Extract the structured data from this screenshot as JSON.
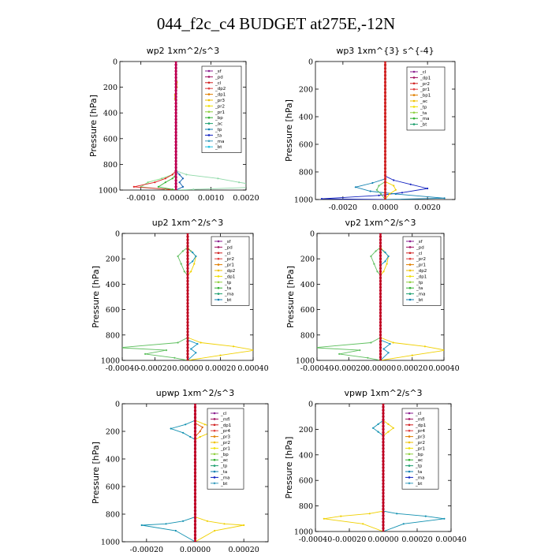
{
  "figure_title": "044_f2c_c4  BUDGET at275E,-12N",
  "chart_data": [
    {
      "type": "line",
      "title": "wp2  1xm^2/s^3",
      "ylabel": "Pressure [hPa]",
      "xlim": [
        -0.0016,
        0.002
      ],
      "ylim": [
        1000,
        0
      ],
      "xticks": [
        "-0.0010",
        "0.0000",
        "0.0010",
        "0.0020"
      ],
      "xtick_values": [
        -0.001,
        0,
        0.001,
        0.002
      ],
      "yticks": [
        "0",
        "200",
        "400",
        "600",
        "800",
        "1000"
      ],
      "ytick_values": [
        0,
        200,
        400,
        600,
        800,
        1000
      ],
      "legend": [
        "_sf",
        "_pd",
        "_cl",
        "_dp2",
        "_dp1",
        "_pr3",
        "_pr2",
        "_pr1",
        "_bp",
        "_ac",
        "_tp",
        "_ta",
        "_ma",
        "_bt"
      ],
      "series": [
        {
          "name": "_pr1",
          "color": "#7fe080",
          "x": [
            0,
            -0.0001,
            -0.0004,
            -0.0008,
            -0.001,
            -0.0003,
            0
          ],
          "y": [
            850,
            880,
            910,
            940,
            975,
            995,
            1000
          ]
        },
        {
          "name": "_ac",
          "color": "#8fd9a8",
          "x": [
            0,
            0.0003,
            0.0012,
            0.0018,
            0.0026,
            0.0005,
            0
          ],
          "y": [
            850,
            880,
            910,
            940,
            975,
            995,
            1000
          ]
        },
        {
          "name": "_dp1",
          "color": "#e02020",
          "x": [
            0,
            -0.0001,
            -0.0003,
            -0.0006,
            -0.0012,
            -0.0002,
            0
          ],
          "y": [
            850,
            880,
            910,
            940,
            975,
            995,
            1000
          ]
        },
        {
          "name": "_bp",
          "color": "#30b030",
          "x": [
            0,
            0,
            -0.0001,
            -0.0003,
            -0.0005,
            -0.0001,
            0
          ],
          "y": [
            850,
            880,
            910,
            940,
            975,
            995,
            1000
          ]
        },
        {
          "name": "_tp",
          "color": "#1060b0",
          "x": [
            0,
            0.0001,
            0.0002,
            0.0001,
            0.0002,
            0
          ],
          "y": [
            850,
            880,
            910,
            940,
            975,
            1000
          ]
        },
        {
          "name": "_pr3",
          "color": "#e0b000",
          "x": [
            0,
            3e-05,
            3e-05,
            0,
            -3e-05,
            -3e-05,
            0,
            0
          ],
          "y": [
            140,
            160,
            200,
            230,
            260,
            290,
            300,
            1000
          ]
        },
        {
          "name": "_pd",
          "color": "#8b2090",
          "x": [
            0,
            0
          ],
          "y": [
            0,
            1000
          ]
        },
        {
          "name": "_cl",
          "color": "#c00050",
          "x": [
            0,
            0
          ],
          "y": [
            0,
            1000
          ]
        }
      ]
    },
    {
      "type": "line",
      "title": "wp3  1xm^{3} s^{-4}",
      "ylabel": "Pressure [hPa]",
      "xlim": [
        -0.0033,
        0.0033
      ],
      "ylim": [
        1000,
        0
      ],
      "xticks": [
        "-0.0020",
        "0.0000",
        "0.0020"
      ],
      "xtick_values": [
        -0.002,
        0,
        0.002
      ],
      "yticks": [
        "0",
        "200",
        "400",
        "600",
        "800",
        "1000"
      ],
      "ytick_values": [
        0,
        200,
        400,
        600,
        800,
        1000
      ],
      "legend": [
        "_cl",
        "_dp1",
        "_pr2",
        "_pr1",
        "_bp1",
        "_ac",
        "_tp",
        "_ta",
        "_ma",
        "_bt"
      ],
      "series": [
        {
          "name": "_ta",
          "color": "#1020c0",
          "x": [
            0,
            0.0004,
            0.0012,
            0.002,
            0.0008,
            -0.0003,
            -0.003,
            0
          ],
          "y": [
            830,
            860,
            890,
            920,
            950,
            970,
            995,
            1000
          ]
        },
        {
          "name": "_tp",
          "color": "#1080b0",
          "x": [
            0,
            -0.0006,
            -0.0014,
            -0.0007,
            0.0005,
            0.0028,
            0
          ],
          "y": [
            850,
            880,
            910,
            940,
            960,
            990,
            1000
          ]
        },
        {
          "name": "_pr1",
          "color": "#f0d000",
          "x": [
            0,
            0.0004,
            0.0005,
            0.0002,
            0
          ],
          "y": [
            870,
            900,
            930,
            960,
            1000
          ]
        },
        {
          "name": "_ac",
          "color": "#60c060",
          "x": [
            0,
            -0.0003,
            -0.0004,
            -0.0002,
            0
          ],
          "y": [
            870,
            900,
            930,
            960,
            1000
          ]
        },
        {
          "name": "_dp1",
          "color": "#d02020",
          "x": [
            0,
            0
          ],
          "y": [
            0,
            1000
          ]
        }
      ]
    },
    {
      "type": "line",
      "title": "up2  1xm^2/s^3",
      "ylabel": "Pressure [hPa]",
      "xlim": [
        -0.0004,
        0.0004
      ],
      "ylim": [
        1000,
        0
      ],
      "xticks": [
        "-0.00040",
        "-0.00020",
        "0.00000",
        "0.00020",
        "0.00040"
      ],
      "xtick_values": [
        -0.0004,
        -0.0002,
        0,
        0.0002,
        0.0004
      ],
      "yticks": [
        "0",
        "200",
        "400",
        "600",
        "800",
        "1000"
      ],
      "ytick_values": [
        0,
        200,
        400,
        600,
        800,
        1000
      ],
      "legend": [
        "_sf",
        "_pd",
        "_cl",
        "_pr2",
        "_pr1",
        "_dp2",
        "_dp1",
        "_tp",
        "_ta",
        "_ma",
        "_bt"
      ],
      "series": [
        {
          "name": "_pr1",
          "color": "#f0d000",
          "x": [
            0,
            2e-05,
            5e-05,
            4e-05,
            2e-05,
            0,
            0,
            8e-05,
            0.00028,
            0.00041,
            0.0002,
            0
          ],
          "y": [
            110,
            140,
            180,
            240,
            300,
            330,
            820,
            860,
            890,
            920,
            960,
            1000
          ]
        },
        {
          "name": "_pr2",
          "color": "#60c060",
          "x": [
            0,
            -3e-05,
            -6e-05,
            -4e-05,
            -2e-05,
            0,
            0,
            -6e-05,
            -0.00042,
            -0.00013,
            -0.00026,
            -8e-05,
            0
          ],
          "y": [
            110,
            140,
            180,
            240,
            300,
            330,
            820,
            860,
            900,
            920,
            950,
            980,
            1000
          ]
        },
        {
          "name": "_tp",
          "color": "#1090c0",
          "x": [
            0,
            3e-05,
            5e-05,
            3e-05,
            0,
            0,
            6e-05,
            2e-05,
            5e-05,
            0
          ],
          "y": [
            120,
            150,
            180,
            220,
            250,
            840,
            870,
            910,
            940,
            1000
          ]
        },
        {
          "name": "_pd",
          "color": "#c00020",
          "x": [
            0,
            0
          ],
          "y": [
            0,
            1000
          ]
        }
      ]
    },
    {
      "type": "line",
      "title": "vp2  1xm^2/s^3",
      "ylabel": "Pressure [hPa]",
      "xlim": [
        -0.0004,
        0.0004
      ],
      "ylim": [
        1000,
        0
      ],
      "xticks": [
        "-0.00040",
        "-0.00020",
        "0.00000",
        "0.00020",
        "0.00040"
      ],
      "xtick_values": [
        -0.0004,
        -0.0002,
        0,
        0.0002,
        0.0004
      ],
      "yticks": [
        "0",
        "200",
        "400",
        "600",
        "800",
        "1000"
      ],
      "ytick_values": [
        0,
        200,
        400,
        600,
        800,
        1000
      ],
      "legend": [
        "_sf",
        "_pd",
        "_cl",
        "_pr2",
        "_pr1",
        "_dp2",
        "_dp1",
        "_tp",
        "_ta",
        "_ma",
        "_bt"
      ],
      "series": [
        {
          "name": "_pr1",
          "color": "#f0d000",
          "x": [
            0,
            2e-05,
            5e-05,
            4e-05,
            2e-05,
            0,
            0,
            8e-05,
            0.00028,
            0.00041,
            0.0002,
            0
          ],
          "y": [
            110,
            140,
            180,
            240,
            300,
            330,
            820,
            860,
            890,
            920,
            960,
            1000
          ]
        },
        {
          "name": "_pr2",
          "color": "#60c060",
          "x": [
            0,
            -3e-05,
            -6e-05,
            -4e-05,
            -2e-05,
            0,
            0,
            -6e-05,
            -0.00042,
            -0.00013,
            -0.00026,
            -8e-05,
            0
          ],
          "y": [
            110,
            140,
            180,
            240,
            300,
            330,
            820,
            860,
            900,
            920,
            950,
            980,
            1000
          ]
        },
        {
          "name": "_tp",
          "color": "#1090c0",
          "x": [
            0,
            3e-05,
            5e-05,
            3e-05,
            0,
            0,
            6e-05,
            2e-05,
            5e-05,
            0
          ],
          "y": [
            120,
            150,
            180,
            220,
            250,
            840,
            870,
            910,
            940,
            1000
          ]
        },
        {
          "name": "_pd",
          "color": "#c00020",
          "x": [
            0,
            0
          ],
          "y": [
            0,
            1000
          ]
        }
      ]
    },
    {
      "type": "line",
      "title": "upwp  1xm^2/s^3",
      "ylabel": "Pressure [hPa]",
      "xlim": [
        -0.0003,
        0.0003
      ],
      "ylim": [
        1000,
        0
      ],
      "xticks": [
        "-0.00020",
        "0.00000",
        "0.00020"
      ],
      "xtick_values": [
        -0.0002,
        0,
        0.0002
      ],
      "yticks": [
        "0",
        "200",
        "400",
        "600",
        "800",
        "1000"
      ],
      "ytick_values": [
        0,
        200,
        400,
        600,
        800,
        1000
      ],
      "legend": [
        "_cl",
        "_mfl",
        "_dp1",
        "_pr4",
        "_pr3",
        "_pr2",
        "_pr1",
        "_bp",
        "_ac",
        "_tp",
        "_ta",
        "_ma",
        "_bt"
      ],
      "series": [
        {
          "name": "_tp",
          "color": "#1090b0",
          "x": [
            0,
            -4e-05,
            -0.0001,
            -5e-05,
            -2e-05,
            0,
            0,
            -5e-05,
            -0.00012,
            -0.00022,
            -8e-05,
            0
          ],
          "y": [
            120,
            150,
            180,
            210,
            240,
            260,
            820,
            850,
            870,
            880,
            920,
            1000
          ]
        },
        {
          "name": "_pr1",
          "color": "#f0d000",
          "x": [
            0,
            4e-05,
            0.0001,
            6e-05,
            2e-05,
            0,
            0,
            5e-05,
            0.00012,
            0.0002,
            8e-05,
            0
          ],
          "y": [
            120,
            150,
            180,
            210,
            240,
            260,
            820,
            850,
            870,
            880,
            920,
            1000
          ]
        },
        {
          "name": "_pr3",
          "color": "#e06000",
          "x": [
            0,
            3e-05,
            2e-05,
            0
          ],
          "y": [
            140,
            170,
            200,
            240
          ]
        },
        {
          "name": "_cl",
          "color": "#8b2090",
          "x": [
            0,
            0
          ],
          "y": [
            0,
            1000
          ]
        },
        {
          "name": "_dp1",
          "color": "#c00020",
          "x": [
            0,
            0
          ],
          "y": [
            0,
            1000
          ]
        }
      ]
    },
    {
      "type": "line",
      "title": "vpwp  1xm^2/s^3",
      "ylabel": "Pressure [hPa]",
      "xlim": [
        -0.0004,
        0.0004
      ],
      "ylim": [
        1000,
        0
      ],
      "xticks": [
        "-0.00040",
        "-0.00020",
        "0.00000",
        "0.00020",
        "0.00040"
      ],
      "xtick_values": [
        -0.0004,
        -0.0002,
        0,
        0.0002,
        0.0004
      ],
      "yticks": [
        "0",
        "200",
        "400",
        "600",
        "800",
        "1000"
      ],
      "ytick_values": [
        0,
        200,
        400,
        600,
        800,
        1000
      ],
      "legend": [
        "_cl",
        "_mfl",
        "_dp1",
        "_pr4",
        "_pr3",
        "_pr2",
        "_pr1",
        "_bp",
        "_ac",
        "_tp",
        "_ta",
        "_ma",
        "_bt"
      ],
      "series": [
        {
          "name": "_tp",
          "color": "#1090b0",
          "x": [
            0,
            -3e-05,
            -6e-05,
            -3e-05,
            0,
            0,
            8e-05,
            0.00025,
            0.00036,
            0.00012,
            0
          ],
          "y": [
            130,
            160,
            190,
            220,
            250,
            840,
            860,
            880,
            900,
            940,
            1000
          ]
        },
        {
          "name": "_pr1",
          "color": "#f0d000",
          "x": [
            0,
            3e-05,
            6e-05,
            3e-05,
            0,
            0,
            -8e-05,
            -0.00025,
            -0.00035,
            -0.00012,
            0
          ],
          "y": [
            130,
            160,
            190,
            220,
            250,
            840,
            860,
            880,
            900,
            940,
            1000
          ]
        },
        {
          "name": "_cl",
          "color": "#8b2090",
          "x": [
            0,
            0
          ],
          "y": [
            0,
            1000
          ]
        },
        {
          "name": "_dp1",
          "color": "#c00020",
          "x": [
            0,
            0
          ],
          "y": [
            0,
            1000
          ]
        }
      ]
    }
  ]
}
